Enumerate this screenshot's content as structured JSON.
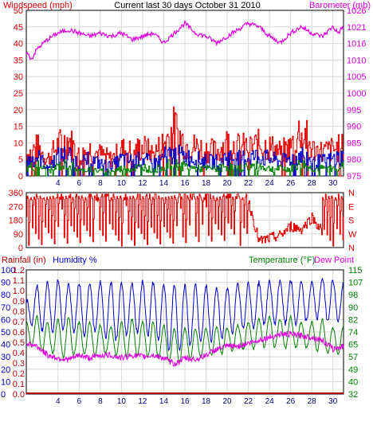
{
  "header": {
    "left_title": "Windspeed (mph)",
    "center_title": "Current last 30 days October 31 2010",
    "right_title": "Barometer (mb)"
  },
  "colors": {
    "background": "#ffffff",
    "plot_bg": "#ffffff",
    "grid": "#d8d8d8",
    "frame": "#000000",
    "red": "#e00000",
    "blue": "#0000c8",
    "green": "#008000",
    "magenta": "#e000e0",
    "dark_red": "#b00000"
  },
  "chart_data": [
    {
      "type": "line",
      "name": "wind-barometer-panel",
      "x_ticks": [
        "4",
        "6",
        "8",
        "10",
        "12",
        "14",
        "16",
        "18",
        "20",
        "22",
        "24",
        "26",
        "28",
        "30"
      ],
      "x_range": [
        1,
        31
      ],
      "left_axis": {
        "label": "Windspeed (mph)",
        "ticks": [
          "0",
          "5",
          "10",
          "15",
          "20",
          "25",
          "30",
          "35",
          "40",
          "45",
          "50"
        ],
        "range": [
          0,
          50
        ]
      },
      "right_axis": {
        "label": "Barometer (mb)",
        "ticks": [
          "975",
          "980",
          "985",
          "990",
          "995",
          "1000",
          "1005",
          "1010",
          "1016",
          "1021",
          "1026"
        ],
        "range": [
          975,
          1026
        ]
      },
      "series": [
        {
          "color": "red",
          "axis": "left",
          "kind": "gust",
          "days": [
            1,
            2,
            3,
            4,
            5,
            6,
            7,
            8,
            9,
            10,
            11,
            12,
            13,
            14,
            15,
            16,
            17,
            18,
            19,
            20,
            21,
            22,
            23,
            24,
            25,
            26,
            27,
            28,
            29,
            30,
            31
          ],
          "values": [
            9,
            12,
            7,
            13,
            15,
            8,
            11,
            9,
            7,
            11,
            10,
            12,
            9,
            14,
            20,
            13,
            12,
            11,
            10,
            14,
            12,
            12,
            13,
            12,
            10,
            12,
            20,
            11,
            10,
            11,
            12
          ]
        },
        {
          "color": "blue",
          "axis": "left",
          "kind": "average",
          "days": [
            1,
            2,
            3,
            4,
            5,
            6,
            7,
            8,
            9,
            10,
            11,
            12,
            13,
            14,
            15,
            16,
            17,
            18,
            19,
            20,
            21,
            22,
            23,
            24,
            25,
            26,
            27,
            28,
            29,
            30,
            31
          ],
          "values": [
            6,
            8,
            4,
            8,
            9,
            5,
            7,
            5,
            4,
            7,
            6,
            7,
            5,
            8,
            9,
            8,
            7,
            6,
            6,
            8,
            7,
            8,
            8,
            7,
            6,
            7,
            9,
            6,
            6,
            7,
            8
          ]
        },
        {
          "color": "green",
          "axis": "left",
          "kind": "minimum",
          "days": [
            1,
            2,
            3,
            4,
            5,
            6,
            7,
            8,
            9,
            10,
            11,
            12,
            13,
            14,
            15,
            16,
            17,
            18,
            19,
            20,
            21,
            22,
            23,
            24,
            25,
            26,
            27,
            28,
            29,
            30,
            31
          ],
          "values": [
            3,
            5,
            2,
            4,
            5,
            2,
            3,
            2,
            2,
            3,
            3,
            4,
            2,
            4,
            5,
            4,
            3,
            3,
            3,
            4,
            3,
            4,
            4,
            3,
            3,
            3,
            5,
            3,
            3,
            3,
            4
          ]
        },
        {
          "color": "magenta",
          "axis": "right",
          "kind": "barometer",
          "days": [
            1,
            1.5,
            2,
            3,
            4,
            5,
            6,
            7,
            8,
            9,
            10,
            11,
            12,
            13,
            14,
            15,
            16,
            17,
            18,
            19,
            20,
            21,
            22,
            23,
            24,
            25,
            26,
            27,
            28,
            29,
            30,
            30.5,
            31
          ],
          "values": [
            1013,
            1011,
            1014,
            1017,
            1019,
            1020,
            1019,
            1018,
            1019,
            1018,
            1019,
            1017,
            1018,
            1019,
            1016,
            1019,
            1022,
            1019,
            1018,
            1016,
            1018,
            1020,
            1022,
            1021,
            1018,
            1016,
            1019,
            1021,
            1019,
            1018,
            1021,
            1019,
            1021
          ]
        }
      ]
    },
    {
      "type": "line",
      "name": "wind-direction-panel",
      "x_range": [
        1,
        31
      ],
      "left_axis": {
        "ticks": [
          "0",
          "90",
          "180",
          "270",
          "360"
        ],
        "range": [
          0,
          360
        ]
      },
      "right_axis": {
        "ticks": [
          "N",
          "E",
          "S",
          "W",
          "N"
        ]
      },
      "series": [
        {
          "color": "red",
          "kind": "direction",
          "days": [
            1,
            2,
            3,
            4,
            5,
            6,
            7,
            8,
            9,
            10,
            11,
            12,
            13,
            14,
            15,
            16,
            17,
            18,
            19,
            20,
            21,
            22,
            23,
            24,
            25,
            26,
            27,
            28,
            29,
            30,
            31
          ],
          "values": [
            300,
            20,
            330,
            10,
            280,
            340,
            30,
            310,
            350,
            20,
            300,
            330,
            10,
            340,
            320,
            20,
            310,
            350,
            30,
            290,
            330,
            300,
            40,
            60,
            80,
            140,
            120,
            200,
            100,
            300,
            340
          ]
        }
      ]
    },
    {
      "type": "line",
      "name": "rain-humidity-temperature-panel",
      "labels": {
        "rainfall": "Rainfall (in)",
        "humidity": "Humidity %",
        "temperature": "Temperature (°F)",
        "dew_point": "Dew Point"
      },
      "x_ticks": [
        "4",
        "6",
        "8",
        "10",
        "12",
        "14",
        "16",
        "18",
        "20",
        "22",
        "24",
        "26",
        "28",
        "30"
      ],
      "x_range": [
        1,
        31
      ],
      "humidity_axis": {
        "ticks": [
          "0",
          "10",
          "20",
          "30",
          "40",
          "50",
          "60",
          "70",
          "80",
          "90",
          "100"
        ],
        "range": [
          0,
          100
        ]
      },
      "rain_axis": {
        "ticks": [
          "0.0",
          "0.1",
          "0.2",
          "0.3",
          "0.4",
          "0.5",
          "0.6",
          "0.7",
          "0.8",
          "0.9",
          "1.0",
          "1.1",
          "1.2"
        ],
        "range": [
          0,
          1.2
        ]
      },
      "temperature_axis": {
        "ticks": [
          "32",
          "40",
          "49",
          "57",
          "65",
          "74",
          "82",
          "90",
          "98",
          "107",
          "115"
        ],
        "range": [
          32,
          115
        ]
      },
      "series": [
        {
          "color": "blue",
          "axis": "humidity",
          "kind": "humidity",
          "days": [
            1,
            2,
            3,
            4,
            5,
            6,
            7,
            8,
            9,
            10,
            11,
            12,
            13,
            14,
            15,
            16,
            17,
            18,
            19,
            20,
            21,
            22,
            23,
            24,
            25,
            26,
            27,
            28,
            29,
            30,
            31
          ],
          "min": [
            60,
            52,
            50,
            50,
            55,
            45,
            50,
            50,
            42,
            45,
            50,
            50,
            45,
            40,
            30,
            40,
            40,
            42,
            45,
            45,
            55,
            50,
            55,
            58,
            55,
            58,
            55,
            62,
            60,
            58,
            60
          ],
          "max": [
            75,
            88,
            90,
            92,
            88,
            90,
            88,
            90,
            90,
            90,
            88,
            90,
            90,
            90,
            88,
            88,
            88,
            88,
            85,
            85,
            88,
            90,
            90,
            90,
            92,
            92,
            90,
            90,
            94,
            92,
            88
          ]
        },
        {
          "color": "green",
          "axis": "temperature",
          "kind": "temperature",
          "days": [
            1,
            2,
            3,
            4,
            5,
            6,
            7,
            8,
            9,
            10,
            11,
            12,
            13,
            14,
            15,
            16,
            17,
            18,
            19,
            20,
            21,
            22,
            23,
            24,
            25,
            26,
            27,
            28,
            29,
            30,
            31
          ],
          "min": [
            66,
            62,
            60,
            58,
            56,
            60,
            58,
            58,
            60,
            56,
            58,
            58,
            56,
            55,
            52,
            56,
            55,
            58,
            58,
            60,
            62,
            62,
            63,
            64,
            63,
            62,
            64,
            62,
            60,
            58,
            60
          ],
          "max": [
            80,
            84,
            80,
            82,
            84,
            80,
            80,
            78,
            76,
            80,
            82,
            80,
            80,
            78,
            75,
            76,
            76,
            76,
            77,
            76,
            78,
            80,
            82,
            84,
            82,
            84,
            80,
            80,
            82,
            76,
            78
          ]
        },
        {
          "color": "magenta",
          "axis": "temperature",
          "kind": "dew_point",
          "days": [
            1,
            2,
            3,
            4,
            5,
            6,
            7,
            8,
            9,
            10,
            11,
            12,
            13,
            14,
            15,
            16,
            17,
            18,
            19,
            20,
            21,
            22,
            23,
            24,
            25,
            26,
            27,
            28,
            29,
            30,
            31
          ],
          "values": [
            66,
            64,
            58,
            56,
            55,
            58,
            56,
            58,
            58,
            56,
            58,
            57,
            58,
            56,
            52,
            56,
            55,
            58,
            62,
            64,
            64,
            66,
            68,
            70,
            72,
            72,
            71,
            70,
            68,
            62,
            64
          ]
        },
        {
          "color": "dark_red",
          "axis": "rain",
          "kind": "rainfall",
          "days": [
            1,
            31
          ],
          "values": [
            0,
            0
          ]
        }
      ]
    }
  ]
}
